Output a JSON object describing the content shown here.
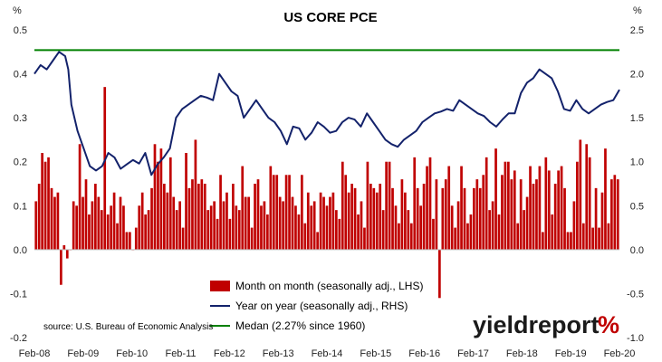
{
  "chart_data": {
    "type": "bar+line",
    "title": "US CORE PCE",
    "left_unit": "%",
    "right_unit": "%",
    "left_axis": {
      "ylim": [
        -0.2,
        0.5
      ],
      "ticks": [
        "-0.2",
        "-0.1",
        "0.0",
        "0.1",
        "0.2",
        "0.3",
        "0.4",
        "0.5"
      ]
    },
    "right_axis": {
      "ylim": [
        -1.0,
        2.5
      ],
      "ticks": [
        "-1.0",
        "-0.5",
        "0.0",
        "0.5",
        "1.0",
        "1.5",
        "2.0",
        "2.5"
      ]
    },
    "x_ticks": [
      "Feb-08",
      "Feb-09",
      "Feb-10",
      "Feb-11",
      "Feb-12",
      "Feb-13",
      "Feb-14",
      "Feb-15",
      "Feb-16",
      "Feb-17",
      "Feb-18",
      "Feb-19",
      "Feb-20"
    ],
    "grid": false,
    "legend_position": "bottom-center",
    "series": [
      {
        "name": "Month on month (seasonally adj., LHS)",
        "kind": "bar",
        "axis": "left",
        "color": "#c00000",
        "start": "Feb-08",
        "values": [
          0.11,
          0.15,
          0.22,
          0.2,
          0.21,
          0.14,
          0.12,
          0.13,
          -0.08,
          0.01,
          -0.02,
          0.0,
          0.11,
          0.1,
          0.24,
          0.12,
          0.16,
          0.08,
          0.11,
          0.15,
          0.12,
          0.09,
          0.37,
          0.08,
          0.1,
          0.13,
          0.06,
          0.12,
          0.1,
          0.04,
          0.04,
          0.0,
          0.05,
          0.1,
          0.13,
          0.08,
          0.09,
          0.14,
          0.24,
          0.2,
          0.23,
          0.15,
          0.13,
          0.21,
          0.12,
          0.09,
          0.11,
          0.05,
          0.22,
          0.14,
          0.16,
          0.25,
          0.15,
          0.16,
          0.15,
          0.09,
          0.1,
          0.11,
          0.07,
          0.17,
          0.11,
          0.13,
          0.07,
          0.15,
          0.1,
          0.09,
          0.19,
          0.12,
          0.12,
          0.05,
          0.15,
          0.16,
          0.1,
          0.11,
          0.08,
          0.19,
          0.17,
          0.17,
          0.12,
          0.11,
          0.17,
          0.17,
          0.12,
          0.1,
          0.08,
          0.17,
          0.06,
          0.13,
          0.1,
          0.11,
          0.04,
          0.13,
          0.12,
          0.1,
          0.12,
          0.13,
          0.09,
          0.07,
          0.2,
          0.17,
          0.13,
          0.15,
          0.14,
          0.08,
          0.11,
          0.05,
          0.2,
          0.15,
          0.14,
          0.13,
          0.15,
          0.09,
          0.2,
          0.2,
          0.14,
          0.1,
          0.06,
          0.16,
          0.13,
          0.09,
          0.06,
          0.21,
          0.14,
          0.1,
          0.15,
          0.19,
          0.21,
          0.07,
          0.16,
          -0.11,
          0.14,
          0.16,
          0.19,
          0.1,
          0.05,
          0.11,
          0.19,
          0.14,
          0.06,
          0.08,
          0.14,
          0.16,
          0.14,
          0.17,
          0.21,
          0.09,
          0.11,
          0.23,
          0.08,
          0.17,
          0.2,
          0.2,
          0.16,
          0.18,
          0.06,
          0.16,
          0.09,
          0.12,
          0.19,
          0.15,
          0.16,
          0.19,
          0.04,
          0.21,
          0.18,
          0.08,
          0.15,
          0.18,
          0.19,
          0.14,
          0.04,
          0.04,
          0.11,
          0.2,
          0.25,
          0.06,
          0.24,
          0.21,
          0.05,
          0.14,
          0.05,
          0.13,
          0.23,
          0.06,
          0.16,
          0.17,
          0.16
        ]
      },
      {
        "name": "Year on year (seasonally adj., RHS)",
        "kind": "line",
        "axis": "right",
        "color": "#13226b",
        "points": [
          [
            0.0,
            2.0
          ],
          [
            2.0,
            2.1
          ],
          [
            4.0,
            2.05
          ],
          [
            6.0,
            2.15
          ],
          [
            8.0,
            2.25
          ],
          [
            10.0,
            2.2
          ],
          [
            11.0,
            2.05
          ],
          [
            12.0,
            1.65
          ],
          [
            14.0,
            1.35
          ],
          [
            16.0,
            1.15
          ],
          [
            18.0,
            0.95
          ],
          [
            20.0,
            0.9
          ],
          [
            22.0,
            0.95
          ],
          [
            24.0,
            1.1
          ],
          [
            26.0,
            1.05
          ],
          [
            28.0,
            0.92
          ],
          [
            30.0,
            0.97
          ],
          [
            32.0,
            1.02
          ],
          [
            34.0,
            0.98
          ],
          [
            36.0,
            1.1
          ],
          [
            38.0,
            0.85
          ],
          [
            40.0,
            0.97
          ],
          [
            42.0,
            1.05
          ],
          [
            44.0,
            1.15
          ],
          [
            46.0,
            1.5
          ],
          [
            48.0,
            1.6
          ],
          [
            50.0,
            1.65
          ],
          [
            52.0,
            1.7
          ],
          [
            54.0,
            1.75
          ],
          [
            56.0,
            1.73
          ],
          [
            58.0,
            1.7
          ],
          [
            60.0,
            2.0
          ],
          [
            62.0,
            1.9
          ],
          [
            64.0,
            1.8
          ],
          [
            66.0,
            1.75
          ],
          [
            68.0,
            1.5
          ],
          [
            70.0,
            1.6
          ],
          [
            72.0,
            1.7
          ],
          [
            74.0,
            1.6
          ],
          [
            76.0,
            1.5
          ],
          [
            78.0,
            1.45
          ],
          [
            80.0,
            1.35
          ],
          [
            82.0,
            1.2
          ],
          [
            84.0,
            1.4
          ],
          [
            86.0,
            1.38
          ],
          [
            88.0,
            1.25
          ],
          [
            90.0,
            1.33
          ],
          [
            92.0,
            1.45
          ],
          [
            94.0,
            1.4
          ],
          [
            96.0,
            1.33
          ],
          [
            98.0,
            1.35
          ],
          [
            100.0,
            1.45
          ],
          [
            102.0,
            1.5
          ],
          [
            104.0,
            1.48
          ],
          [
            106.0,
            1.4
          ],
          [
            108.0,
            1.55
          ],
          [
            110.0,
            1.45
          ],
          [
            112.0,
            1.35
          ],
          [
            114.0,
            1.25
          ],
          [
            116.0,
            1.2
          ],
          [
            118.0,
            1.17
          ],
          [
            120.0,
            1.25
          ],
          [
            122.0,
            1.3
          ],
          [
            124.0,
            1.35
          ],
          [
            126.0,
            1.45
          ],
          [
            128.0,
            1.5
          ],
          [
            130.0,
            1.55
          ],
          [
            132.0,
            1.57
          ],
          [
            134.0,
            1.6
          ],
          [
            136.0,
            1.58
          ],
          [
            138.0,
            1.7
          ],
          [
            140.0,
            1.65
          ],
          [
            142.0,
            1.6
          ],
          [
            144.0,
            1.55
          ],
          [
            146.0,
            1.52
          ],
          [
            148.0,
            1.45
          ],
          [
            150.0,
            1.4
          ],
          [
            152.0,
            1.48
          ],
          [
            154.0,
            1.55
          ],
          [
            156.0,
            1.55
          ],
          [
            158.0,
            1.78
          ],
          [
            160.0,
            1.9
          ],
          [
            162.0,
            1.95
          ],
          [
            164.0,
            2.05
          ],
          [
            166.0,
            2.0
          ],
          [
            168.0,
            1.95
          ],
          [
            170.0,
            1.8
          ],
          [
            172.0,
            1.6
          ],
          [
            174.0,
            1.58
          ],
          [
            176.0,
            1.7
          ],
          [
            178.0,
            1.6
          ],
          [
            180.0,
            1.55
          ],
          [
            182.0,
            1.6
          ],
          [
            184.0,
            1.65
          ],
          [
            186.0,
            1.68
          ],
          [
            188.0,
            1.7
          ],
          [
            190.0,
            1.82
          ]
        ]
      },
      {
        "name": "Medan (2.27% since 1960)",
        "kind": "hline",
        "axis": "right",
        "color": "#008000",
        "value": 2.27
      }
    ],
    "source": "source: U.S. Bureau of Economic Analysis"
  },
  "brand": {
    "text": "yieldreport",
    "mark": "%"
  }
}
